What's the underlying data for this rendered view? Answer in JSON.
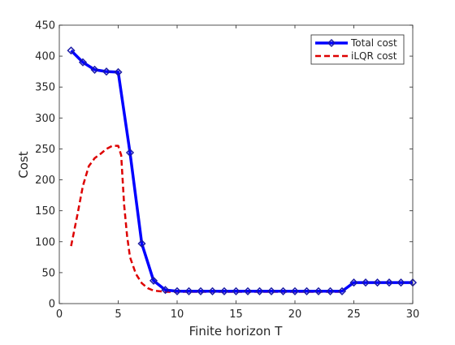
{
  "chart_data": {
    "type": "line",
    "xlabel": "Finite horizon T",
    "ylabel": "Cost",
    "xlim": [
      0,
      30
    ],
    "ylim": [
      0,
      450
    ],
    "xticks": [
      0,
      5,
      10,
      15,
      20,
      25,
      30
    ],
    "yticks": [
      0,
      50,
      100,
      150,
      200,
      250,
      300,
      350,
      400,
      450
    ],
    "grid": false,
    "legend_position": "top-right",
    "series": [
      {
        "name": "Total cost",
        "color": "#0000ff",
        "marker_edge_color": "#1a1aa6",
        "style": "solid-with-diamond-markers",
        "x": [
          1,
          2,
          3,
          4,
          5,
          6,
          7,
          8,
          9,
          10,
          11,
          12,
          13,
          14,
          15,
          16,
          17,
          18,
          19,
          20,
          21,
          22,
          23,
          24,
          25,
          26,
          27,
          28,
          29,
          30
        ],
        "y": [
          409,
          390,
          378,
          375,
          374,
          244,
          97,
          37,
          22,
          20,
          20,
          20,
          20,
          20,
          20,
          20,
          20,
          20,
          20,
          20,
          20,
          20,
          20,
          20,
          34,
          34,
          34,
          34,
          34,
          34
        ]
      },
      {
        "name": "iLQR cost",
        "color": "#dd0000",
        "style": "dashed",
        "x": [
          1,
          1.5,
          2,
          2.5,
          3,
          3.5,
          4,
          4.5,
          5,
          5.25,
          5.5,
          5.75,
          6,
          6.5,
          7,
          7.5,
          8,
          8.5,
          9,
          10,
          11,
          12,
          13,
          14,
          15,
          16,
          17,
          18,
          19,
          20,
          21,
          22,
          23,
          24
        ],
        "y": [
          93,
          140,
          190,
          222,
          235,
          242,
          250,
          255,
          255,
          240,
          160,
          110,
          75,
          48,
          33,
          25,
          21,
          20,
          19,
          19,
          19,
          19,
          19,
          19,
          19,
          19,
          19,
          19,
          19,
          19,
          19,
          19,
          19,
          19
        ]
      }
    ]
  }
}
